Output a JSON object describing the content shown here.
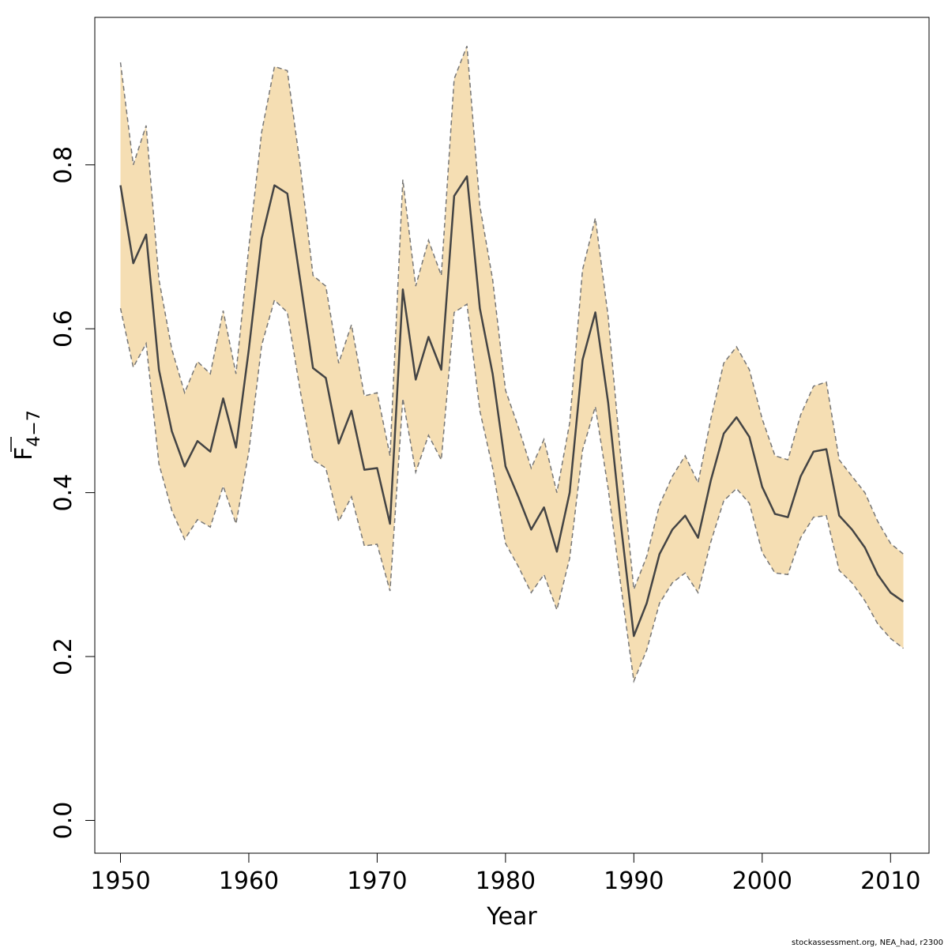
{
  "chart_data": {
    "type": "line",
    "xlabel": "Year",
    "ylabel": "F",
    "ylabel_subscript": "4−7",
    "xlim": [
      1948,
      2013
    ],
    "ylim": [
      -0.04,
      0.98
    ],
    "x_ticks": [
      1950,
      1960,
      1970,
      1980,
      1990,
      2000,
      2010
    ],
    "y_ticks": [
      0.0,
      0.2,
      0.4,
      0.6,
      0.8
    ],
    "x_tick_labels": [
      "1950",
      "1960",
      "1970",
      "1980",
      "1990",
      "2000",
      "2010"
    ],
    "y_tick_labels": [
      "0.0",
      "0.2",
      "0.4",
      "0.6",
      "0.8"
    ],
    "grid": false,
    "colors": {
      "band": "#F5DEB3",
      "band_edge": "#777777",
      "line": "#444444"
    },
    "x": [
      1950,
      1951,
      1952,
      1953,
      1954,
      1955,
      1956,
      1957,
      1958,
      1959,
      1960,
      1961,
      1962,
      1963,
      1964,
      1965,
      1966,
      1967,
      1968,
      1969,
      1970,
      1971,
      1972,
      1973,
      1974,
      1975,
      1976,
      1977,
      1978,
      1979,
      1980,
      1981,
      1982,
      1983,
      1984,
      1985,
      1986,
      1987,
      1988,
      1989,
      1990,
      1991,
      1992,
      1993,
      1994,
      1995,
      1996,
      1997,
      1998,
      1999,
      2000,
      2001,
      2002,
      2003,
      2004,
      2005,
      2006,
      2007,
      2008,
      2009,
      2010,
      2011
    ],
    "series": [
      {
        "values": [
          0.775,
          0.68,
          0.715,
          0.55,
          0.475,
          0.432,
          0.463,
          0.45,
          0.515,
          0.455,
          0.575,
          0.71,
          0.775,
          0.765,
          0.66,
          0.552,
          0.54,
          0.46,
          0.5,
          0.428,
          0.43,
          0.362,
          0.648,
          0.538,
          0.59,
          0.55,
          0.762,
          0.786,
          0.625,
          0.545,
          0.432,
          0.395,
          0.355,
          0.382,
          0.328,
          0.4,
          0.562,
          0.62,
          0.51,
          0.36,
          0.225,
          0.265,
          0.325,
          0.355,
          0.372,
          0.345,
          0.415,
          0.472,
          0.492,
          0.468,
          0.407,
          0.374,
          0.37,
          0.42,
          0.45,
          0.453,
          0.372,
          0.355,
          0.333,
          0.3,
          0.278,
          0.267
        ]
      }
    ],
    "band_upper": [
      0.925,
      0.8,
      0.848,
      0.66,
      0.575,
      0.522,
      0.56,
      0.545,
      0.622,
      0.545,
      0.7,
      0.84,
      0.92,
      0.915,
      0.8,
      0.665,
      0.652,
      0.558,
      0.605,
      0.518,
      0.522,
      0.445,
      0.782,
      0.652,
      0.708,
      0.665,
      0.905,
      0.945,
      0.75,
      0.66,
      0.525,
      0.48,
      0.43,
      0.465,
      0.4,
      0.485,
      0.672,
      0.735,
      0.615,
      0.44,
      0.282,
      0.322,
      0.385,
      0.42,
      0.445,
      0.412,
      0.49,
      0.558,
      0.578,
      0.55,
      0.49,
      0.445,
      0.44,
      0.495,
      0.53,
      0.535,
      0.44,
      0.42,
      0.4,
      0.365,
      0.338,
      0.325
    ],
    "band_lower": [
      0.625,
      0.553,
      0.582,
      0.435,
      0.378,
      0.343,
      0.367,
      0.358,
      0.408,
      0.362,
      0.45,
      0.58,
      0.635,
      0.62,
      0.525,
      0.44,
      0.43,
      0.365,
      0.395,
      0.335,
      0.337,
      0.28,
      0.515,
      0.425,
      0.47,
      0.44,
      0.62,
      0.63,
      0.5,
      0.43,
      0.338,
      0.31,
      0.278,
      0.3,
      0.257,
      0.32,
      0.452,
      0.505,
      0.405,
      0.285,
      0.17,
      0.208,
      0.265,
      0.29,
      0.302,
      0.278,
      0.34,
      0.39,
      0.405,
      0.387,
      0.327,
      0.302,
      0.3,
      0.345,
      0.37,
      0.372,
      0.305,
      0.29,
      0.268,
      0.24,
      0.222,
      0.21
    ]
  },
  "footer": {
    "source_text": "stockassessment.org, NEA_had, r2300"
  }
}
